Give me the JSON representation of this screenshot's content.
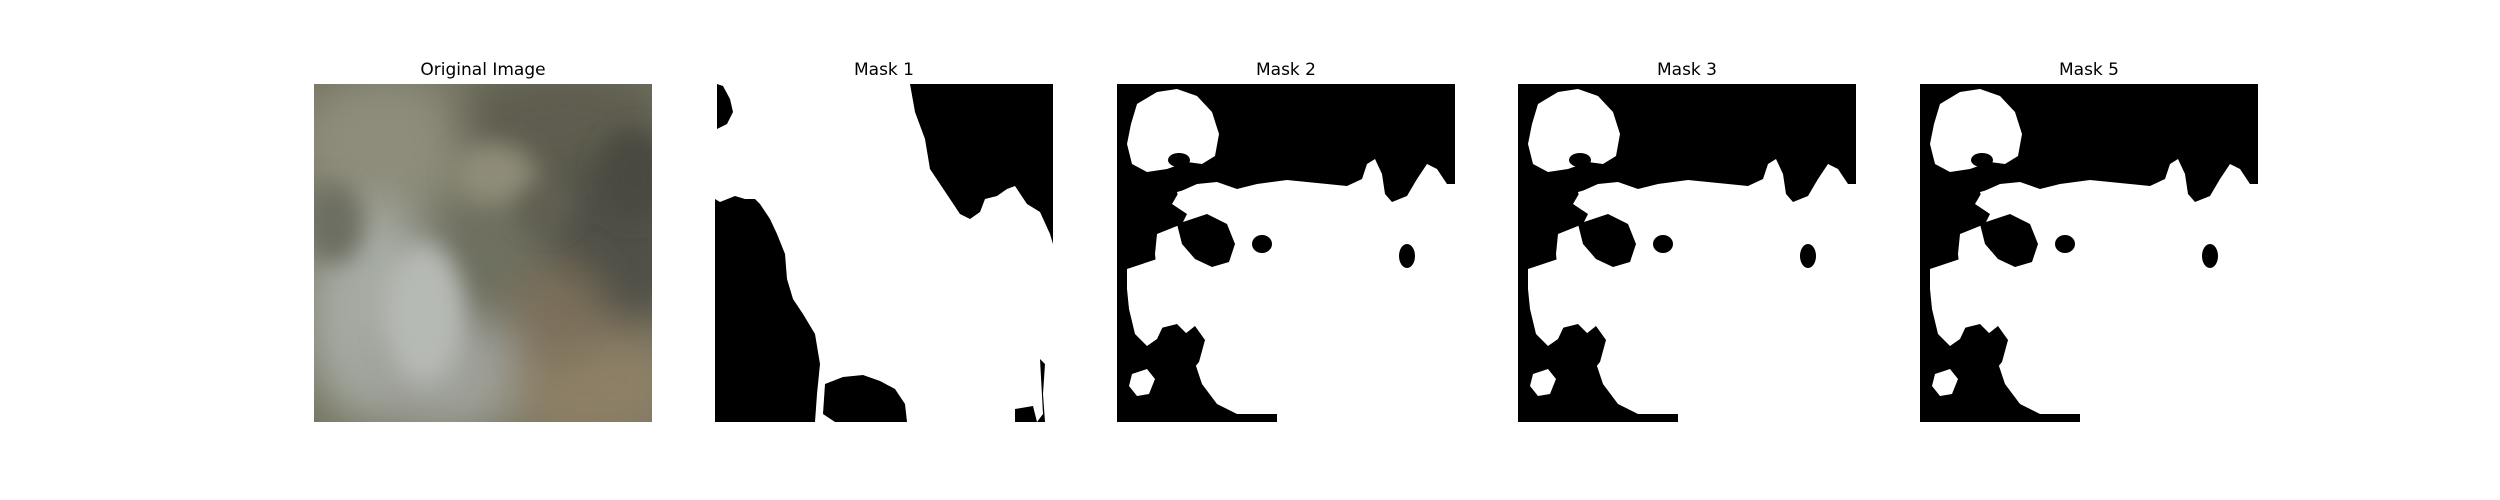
{
  "panels": [
    {
      "title": "Original Image",
      "kind": "photo"
    },
    {
      "title": "Mask 1",
      "kind": "mask"
    },
    {
      "title": "Mask 2",
      "kind": "mask"
    },
    {
      "title": "Mask 3",
      "kind": "mask"
    },
    {
      "title": "Mask 5",
      "kind": "mask"
    }
  ],
  "colors": {
    "background": "#ffffff",
    "mask_foreground": "#ffffff",
    "mask_background": "#000000",
    "photo_base": "#7a7766"
  }
}
